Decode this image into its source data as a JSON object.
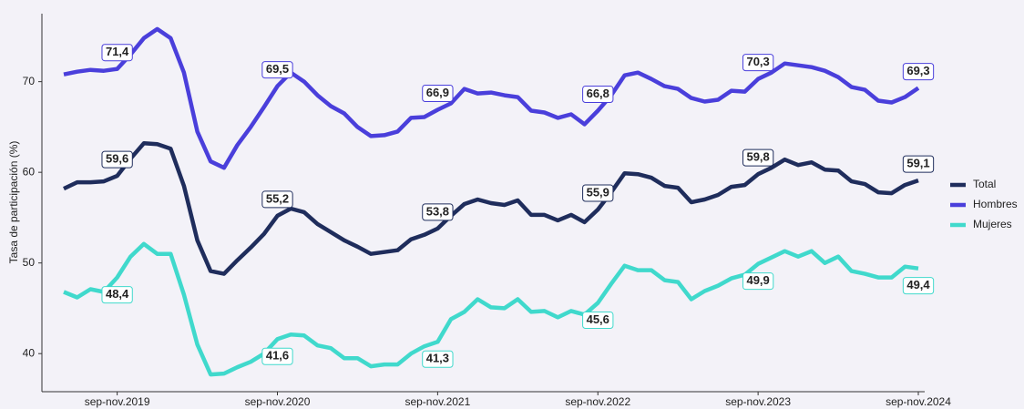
{
  "chart_data": {
    "type": "line",
    "y_label": "Tasa de participación (%)",
    "categories": [
      null,
      null,
      null,
      null,
      "sep-nov.2019",
      null,
      null,
      null,
      null,
      null,
      null,
      null,
      null,
      null,
      null,
      null,
      "sep-nov.2020",
      null,
      null,
      null,
      null,
      null,
      null,
      null,
      null,
      null,
      null,
      null,
      "sep-nov.2021",
      null,
      null,
      null,
      null,
      null,
      null,
      null,
      null,
      null,
      null,
      null,
      "sep-nov.2022",
      null,
      null,
      null,
      null,
      null,
      null,
      null,
      null,
      null,
      null,
      null,
      "sep-nov.2023",
      null,
      null,
      null,
      null,
      null,
      null,
      null,
      null,
      null,
      null,
      null,
      "sep-nov.2024"
    ],
    "ylim": [
      35.8,
      77.5
    ],
    "yticks": [
      40,
      50,
      60,
      70
    ],
    "grid": false,
    "legend": "right",
    "series": [
      {
        "name": "Total",
        "color": "#1f2d5c",
        "values": [
          58.2,
          58.9,
          58.9,
          59.0,
          59.6,
          61.5,
          63.2,
          63.1,
          62.6,
          58.5,
          52.5,
          49.1,
          48.8,
          50.3,
          51.7,
          53.2,
          55.2,
          56.0,
          55.6,
          54.3,
          53.4,
          52.5,
          51.8,
          51.0,
          51.2,
          51.4,
          52.6,
          53.1,
          53.8,
          55.2,
          56.5,
          57.0,
          56.6,
          56.4,
          56.9,
          55.3,
          55.3,
          54.7,
          55.3,
          54.5,
          55.9,
          57.8,
          59.9,
          59.8,
          59.4,
          58.5,
          58.3,
          56.7,
          57.0,
          57.5,
          58.4,
          58.6,
          59.8,
          60.5,
          61.4,
          60.8,
          61.1,
          60.3,
          60.2,
          59.0,
          58.7,
          57.8,
          57.7,
          58.6,
          59.1
        ],
        "value_labels": [
          null,
          null,
          null,
          null,
          "59,6",
          null,
          null,
          null,
          null,
          null,
          null,
          null,
          null,
          null,
          null,
          null,
          "55,2",
          null,
          null,
          null,
          null,
          null,
          null,
          null,
          null,
          null,
          null,
          null,
          "53,8",
          null,
          null,
          null,
          null,
          null,
          null,
          null,
          null,
          null,
          null,
          null,
          "55,9",
          null,
          null,
          null,
          null,
          null,
          null,
          null,
          null,
          null,
          null,
          null,
          "59,8",
          null,
          null,
          null,
          null,
          null,
          null,
          null,
          null,
          null,
          null,
          null,
          "59,1"
        ]
      },
      {
        "name": "Hombres",
        "color": "#4a3fdb",
        "values": [
          70.8,
          71.1,
          71.3,
          71.2,
          71.4,
          73.0,
          74.8,
          75.8,
          74.8,
          71.0,
          64.5,
          61.2,
          60.5,
          63.0,
          65.0,
          67.2,
          69.5,
          71.0,
          70.0,
          68.5,
          67.3,
          66.5,
          65.0,
          64.0,
          64.1,
          64.5,
          66.0,
          66.1,
          66.9,
          67.6,
          69.2,
          68.7,
          68.8,
          68.5,
          68.3,
          66.8,
          66.6,
          66.0,
          66.4,
          65.3,
          66.8,
          68.5,
          70.7,
          71.0,
          70.3,
          69.5,
          69.2,
          68.2,
          67.8,
          68.0,
          69.0,
          68.9,
          70.3,
          71.0,
          72.0,
          71.8,
          71.6,
          71.2,
          70.5,
          69.4,
          69.1,
          67.9,
          67.7,
          68.3,
          69.3
        ],
        "value_labels": [
          null,
          null,
          null,
          null,
          "71,4",
          null,
          null,
          null,
          null,
          null,
          null,
          null,
          null,
          null,
          null,
          null,
          "69,5",
          null,
          null,
          null,
          null,
          null,
          null,
          null,
          null,
          null,
          null,
          null,
          "66,9",
          null,
          null,
          null,
          null,
          null,
          null,
          null,
          null,
          null,
          null,
          null,
          "66,8",
          null,
          null,
          null,
          null,
          null,
          null,
          null,
          null,
          null,
          null,
          null,
          "70,3",
          null,
          null,
          null,
          null,
          null,
          null,
          null,
          null,
          null,
          null,
          null,
          "69,3"
        ]
      },
      {
        "name": "Mujeres",
        "color": "#40d9cc",
        "values": [
          46.8,
          46.2,
          47.1,
          46.8,
          48.4,
          50.7,
          52.1,
          51.0,
          51.0,
          46.5,
          41.0,
          37.7,
          37.8,
          38.5,
          39.1,
          40.0,
          41.6,
          42.1,
          42.0,
          40.9,
          40.6,
          39.5,
          39.5,
          38.6,
          38.8,
          38.8,
          40.0,
          40.8,
          41.3,
          43.8,
          44.6,
          46.0,
          45.1,
          45.0,
          46.0,
          44.6,
          44.7,
          44.0,
          44.7,
          44.3,
          45.6,
          47.7,
          49.7,
          49.2,
          49.2,
          48.1,
          47.9,
          46.0,
          46.9,
          47.5,
          48.3,
          48.7,
          49.9,
          50.6,
          51.3,
          50.7,
          51.3,
          50.0,
          50.7,
          49.1,
          48.8,
          48.4,
          48.4,
          49.6,
          49.4
        ],
        "value_labels": [
          null,
          null,
          null,
          null,
          "48,4",
          null,
          null,
          null,
          null,
          null,
          null,
          null,
          null,
          null,
          null,
          null,
          "41,6",
          null,
          null,
          null,
          null,
          null,
          null,
          null,
          null,
          null,
          null,
          null,
          "41,3",
          null,
          null,
          null,
          null,
          null,
          null,
          null,
          null,
          null,
          null,
          null,
          "45,6",
          null,
          null,
          null,
          null,
          null,
          null,
          null,
          null,
          null,
          null,
          null,
          "49,9",
          null,
          null,
          null,
          null,
          null,
          null,
          null,
          null,
          null,
          null,
          null,
          "49,4"
        ]
      }
    ]
  }
}
